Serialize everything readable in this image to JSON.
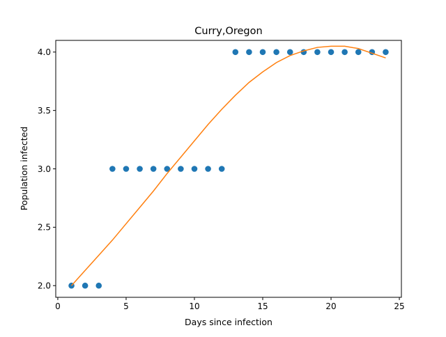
{
  "chart_data": {
    "type": "scatter",
    "title": "Curry,Oregon",
    "xlabel": "Days since infection",
    "ylabel": "Population infected",
    "xlim": [
      -0.15,
      25.15
    ],
    "ylim": [
      1.9,
      4.1
    ],
    "xticks": [
      0,
      5,
      10,
      15,
      20,
      25
    ],
    "xtick_labels": [
      "0",
      "5",
      "10",
      "15",
      "20",
      "25"
    ],
    "yticks": [
      2.0,
      2.5,
      3.0,
      3.5,
      4.0
    ],
    "ytick_labels": [
      "2.0",
      "2.5",
      "3.0",
      "3.5",
      "4.0"
    ],
    "grid": false,
    "series": [
      {
        "kind": "scatter",
        "color": "#1f77b4",
        "x": [
          1,
          2,
          3,
          4,
          5,
          6,
          7,
          8,
          9,
          10,
          11,
          12,
          13,
          14,
          15,
          16,
          17,
          18,
          19,
          20,
          21,
          22,
          23,
          24
        ],
        "y": [
          2,
          2,
          2,
          3,
          3,
          3,
          3,
          3,
          3,
          3,
          3,
          3,
          4,
          4,
          4,
          4,
          4,
          4,
          4,
          4,
          4,
          4,
          4,
          4
        ]
      },
      {
        "kind": "line",
        "color": "#ff7f0e",
        "x": [
          1,
          2,
          3,
          4,
          5,
          6,
          7,
          8,
          9,
          10,
          11,
          12,
          13,
          14,
          15,
          16,
          17,
          18,
          19,
          20,
          21,
          22,
          23,
          24
        ],
        "y": [
          2.0,
          2.13,
          2.26,
          2.39,
          2.53,
          2.67,
          2.81,
          2.96,
          3.1,
          3.24,
          3.38,
          3.51,
          3.63,
          3.74,
          3.83,
          3.91,
          3.97,
          4.01,
          4.04,
          4.05,
          4.05,
          4.03,
          3.99,
          3.95
        ]
      }
    ]
  }
}
